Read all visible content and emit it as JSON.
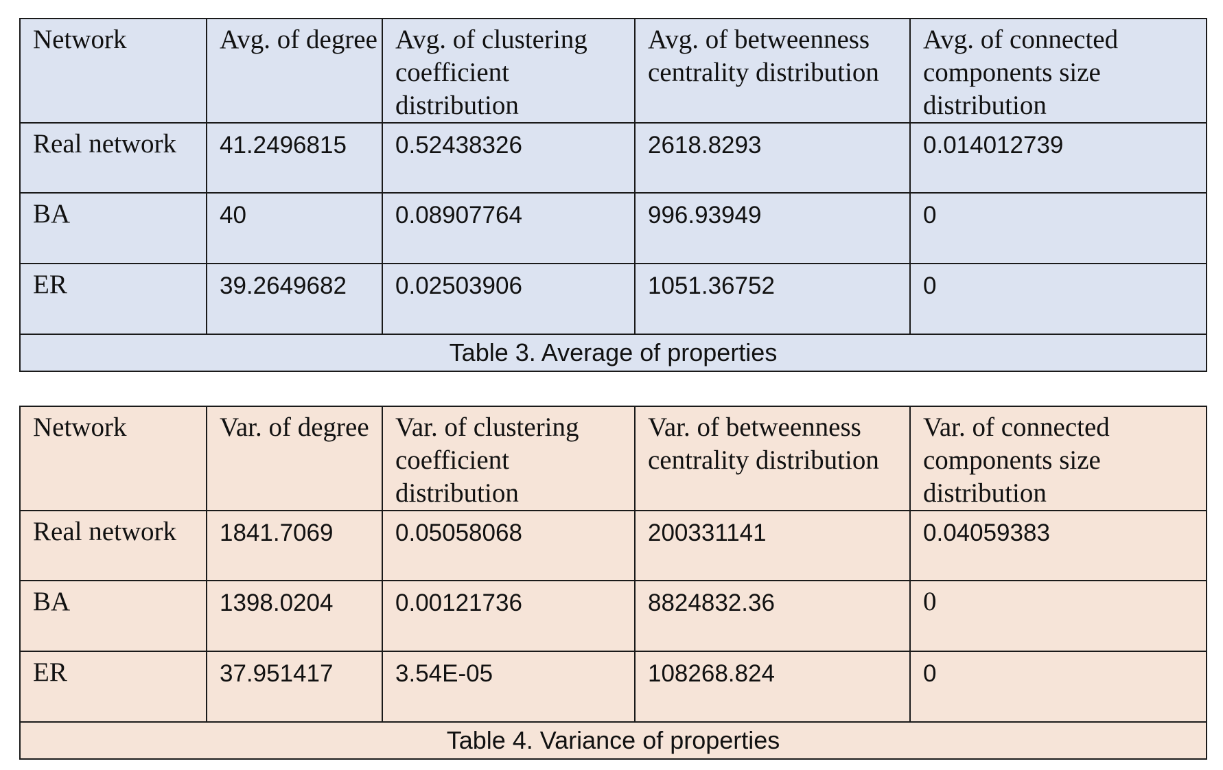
{
  "table3": {
    "columns": [
      "Network",
      "Avg. of degree",
      "Avg. of clustering coefficient distribution",
      "Avg. of betweenness centrality distribution",
      "Avg. of connected components size distribution"
    ],
    "rows": [
      {
        "network": "Real network",
        "values": [
          "41.2496815",
          "0.52438326",
          "2618.8293",
          "0.014012739"
        ]
      },
      {
        "network": "BA",
        "values": [
          "40",
          "0.08907764",
          "996.93949",
          "0"
        ]
      },
      {
        "network": "ER",
        "values": [
          "39.2649682",
          "0.02503906",
          "1051.36752",
          "0"
        ]
      }
    ],
    "caption": "Table 3. Average of properties"
  },
  "table4": {
    "columns": [
      "Network",
      "Var. of degree",
      "Var. of clustering coefficient distribution",
      "Var. of betweenness centrality distribution",
      "Var. of connected components size distribution"
    ],
    "rows": [
      {
        "network": "Real network",
        "values": [
          "1841.7069",
          "0.05058068",
          "200331141",
          "0.04059383"
        ]
      },
      {
        "network": "BA",
        "values": [
          "1398.0204",
          "0.00121736",
          "8824832.36",
          "0"
        ]
      },
      {
        "network": "ER",
        "values": [
          "37.951417",
          "3.54E-05",
          "108268.824",
          "0"
        ]
      }
    ],
    "caption": "Table 4. Variance of properties"
  },
  "colors": {
    "table3_fill": "#dce3f1",
    "table4_fill": "#f6e4d8",
    "border": "#1a1a1a"
  }
}
